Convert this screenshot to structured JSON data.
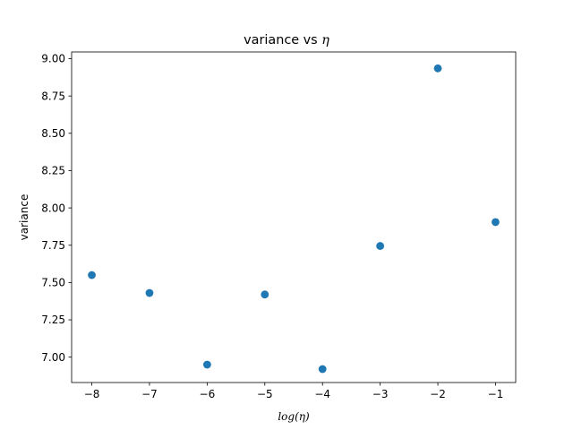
{
  "chart_data": {
    "type": "scatter",
    "title": "variance vs η",
    "title_prefix": "variance vs ",
    "title_symbol": "η",
    "xlabel": "log(η)",
    "ylabel": "variance",
    "x": [
      -8,
      -7,
      -6,
      -5,
      -4,
      -3,
      -2,
      -1
    ],
    "y": [
      7.55,
      7.43,
      6.95,
      7.42,
      6.92,
      7.745,
      8.935,
      7.905
    ],
    "xlim": [
      -8.35,
      -0.65
    ],
    "ylim": [
      6.83,
      9.045
    ],
    "xticks": [
      -8,
      -7,
      -6,
      -5,
      -4,
      -3,
      -2,
      -1
    ],
    "xtick_labels": [
      "−8",
      "−7",
      "−6",
      "−5",
      "−4",
      "−3",
      "−2",
      "−1"
    ],
    "yticks": [
      7.0,
      7.25,
      7.5,
      7.75,
      8.0,
      8.25,
      8.5,
      8.75,
      9.0
    ],
    "ytick_labels": [
      "7.00",
      "7.25",
      "7.50",
      "7.75",
      "8.00",
      "8.25",
      "8.50",
      "8.75",
      "9.00"
    ],
    "grid": false,
    "marker_color": "#1f77b4"
  }
}
